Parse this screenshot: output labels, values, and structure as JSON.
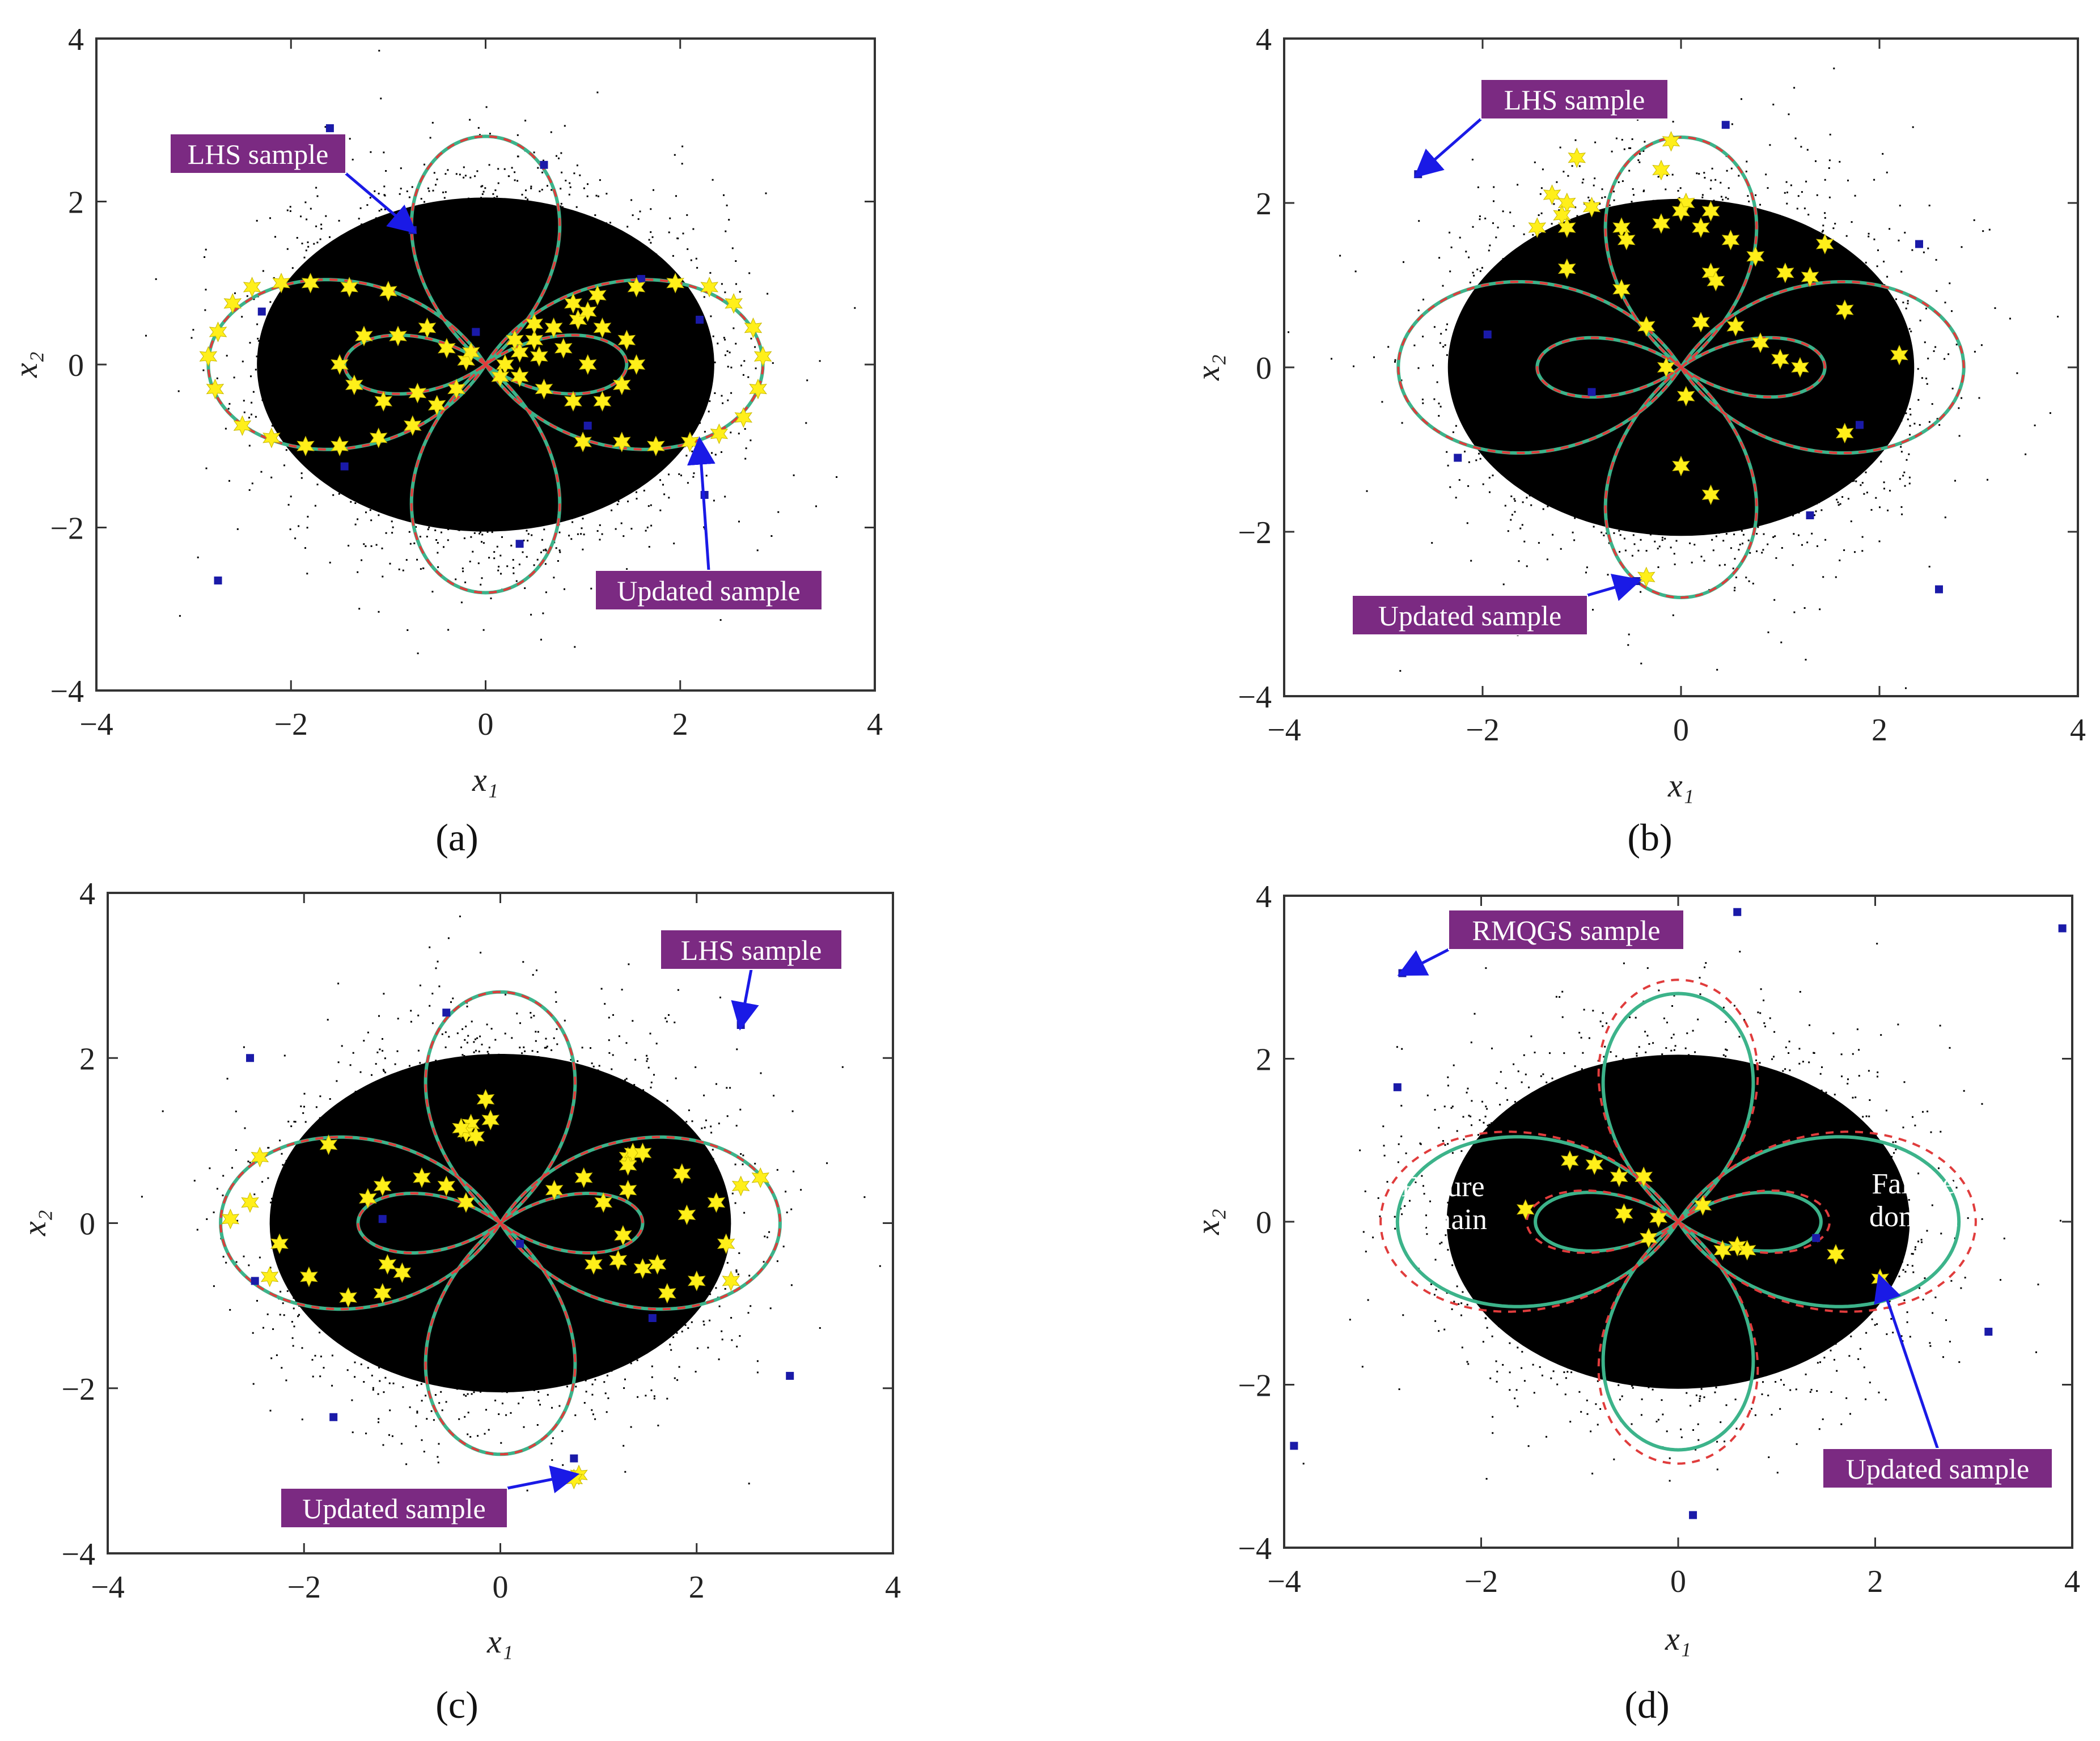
{
  "figure": {
    "panel_labels": [
      "(a)",
      "(b)",
      "(c)",
      "(d)"
    ],
    "colors": {
      "mcs_points": "#000000",
      "true_boundary": "#3cb38a",
      "surrogate_boundary": "#e03c3c",
      "initial_sample": "#1a1aa8",
      "updated_sample": "#ffef1a",
      "annotation_bg": "#7b2a82",
      "annotation_text": "#ffffff",
      "arrow": "#1a1ae6"
    }
  },
  "chart_data": [
    {
      "id": "a",
      "type": "scatter",
      "panel_label": "(a)",
      "xlabel": "x₁",
      "ylabel": "x₂",
      "xlim": [
        -4,
        4
      ],
      "ylim": [
        -4,
        4
      ],
      "xticks": [
        -4,
        -2,
        0,
        2,
        4
      ],
      "yticks": [
        -4,
        -2,
        0,
        2,
        4
      ],
      "tick_labels": [
        "−4",
        "−2",
        "0",
        "2",
        "4"
      ],
      "series": [
        {
          "name": "Monte Carlo population",
          "kind": "dense cloud",
          "std": 1.0
        },
        {
          "name": "Limit state (true)",
          "kind": "curve",
          "style": "solid"
        },
        {
          "name": "Limit state (surrogate)",
          "kind": "curve",
          "style": "dashed",
          "scale": 1.0
        },
        {
          "name": "LHS sample",
          "kind": "square",
          "points": [
            [
              -0.75,
              1.65
            ],
            [
              0.6,
              2.45
            ],
            [
              -1.6,
              2.9
            ],
            [
              -2.3,
              0.65
            ],
            [
              -0.1,
              0.4
            ],
            [
              1.6,
              1.05
            ],
            [
              -1.45,
              -1.25
            ],
            [
              1.05,
              -0.75
            ],
            [
              0.35,
              -2.2
            ],
            [
              2.25,
              -1.6
            ],
            [
              -2.75,
              -2.65
            ],
            [
              2.2,
              0.55
            ]
          ]
        },
        {
          "name": "Updated sample",
          "kind": "star",
          "points": [
            [
              -2.85,
              0.1
            ],
            [
              -2.78,
              -0.3
            ],
            [
              -2.75,
              0.4
            ],
            [
              -2.6,
              0.75
            ],
            [
              -2.4,
              0.95
            ],
            [
              -2.1,
              1.0
            ],
            [
              -1.8,
              1.0
            ],
            [
              -1.4,
              0.95
            ],
            [
              -1.0,
              0.9
            ],
            [
              -2.5,
              -0.75
            ],
            [
              -2.2,
              -0.9
            ],
            [
              -1.85,
              -1.0
            ],
            [
              -1.5,
              -1.0
            ],
            [
              -1.1,
              -0.9
            ],
            [
              -0.75,
              -0.75
            ],
            [
              -0.9,
              0.35
            ],
            [
              -1.25,
              0.35
            ],
            [
              -1.5,
              0.0
            ],
            [
              -1.35,
              -0.25
            ],
            [
              -1.05,
              -0.45
            ],
            [
              -0.7,
              -0.35
            ],
            [
              -0.6,
              0.45
            ],
            [
              -0.4,
              0.2
            ],
            [
              -0.2,
              0.05
            ],
            [
              0.2,
              0.0
            ],
            [
              0.35,
              0.15
            ],
            [
              0.5,
              0.3
            ],
            [
              0.7,
              0.45
            ],
            [
              0.95,
              0.55
            ],
            [
              1.2,
              0.45
            ],
            [
              1.45,
              0.3
            ],
            [
              1.55,
              0.0
            ],
            [
              1.4,
              -0.25
            ],
            [
              1.2,
              -0.45
            ],
            [
              0.9,
              -0.45
            ],
            [
              0.6,
              -0.3
            ],
            [
              0.35,
              -0.15
            ],
            [
              0.9,
              0.75
            ],
            [
              1.05,
              0.65
            ],
            [
              0.55,
              0.1
            ],
            [
              0.8,
              0.2
            ],
            [
              1.05,
              0.0
            ],
            [
              1.0,
              -0.95
            ],
            [
              1.4,
              -0.95
            ],
            [
              1.75,
              -1.0
            ],
            [
              2.1,
              -0.95
            ],
            [
              2.4,
              -0.85
            ],
            [
              2.65,
              -0.65
            ],
            [
              2.8,
              -0.3
            ],
            [
              2.85,
              0.1
            ],
            [
              2.75,
              0.45
            ],
            [
              2.55,
              0.75
            ],
            [
              2.3,
              0.95
            ],
            [
              1.95,
              1.0
            ],
            [
              1.55,
              0.95
            ],
            [
              1.15,
              0.85
            ],
            [
              -0.5,
              -0.5
            ],
            [
              0.5,
              0.5
            ],
            [
              -0.3,
              -0.3
            ],
            [
              0.3,
              0.3
            ],
            [
              -0.15,
              0.15
            ],
            [
              0.15,
              -0.15
            ]
          ]
        }
      ],
      "annotations": [
        {
          "text": "LHS sample",
          "target": [
            -0.75,
            1.65
          ]
        },
        {
          "text": "Updated sample",
          "target": [
            2.2,
            -0.95
          ]
        }
      ]
    },
    {
      "id": "b",
      "type": "scatter",
      "panel_label": "(b)",
      "xlabel": "x₁",
      "ylabel": "x₂",
      "xlim": [
        -4,
        4
      ],
      "ylim": [
        -4,
        4
      ],
      "xticks": [
        -4,
        -2,
        0,
        2,
        4
      ],
      "yticks": [
        -4,
        -2,
        0,
        2,
        4
      ],
      "tick_labels": [
        "−4",
        "−2",
        "0",
        "2",
        "4"
      ],
      "series": [
        {
          "name": "Monte Carlo population",
          "kind": "dense cloud",
          "std": 1.0
        },
        {
          "name": "Limit state (true)",
          "kind": "curve",
          "style": "solid"
        },
        {
          "name": "Limit state (surrogate)",
          "kind": "curve",
          "style": "dashed",
          "scale": 1.0
        },
        {
          "name": "LHS sample",
          "kind": "square",
          "points": [
            [
              -2.65,
              2.35
            ],
            [
              0.45,
              2.95
            ],
            [
              2.4,
              1.5
            ],
            [
              -1.95,
              0.4
            ],
            [
              -0.9,
              -0.3
            ],
            [
              -2.25,
              -1.1
            ],
            [
              1.3,
              -1.8
            ],
            [
              1.8,
              -0.7
            ],
            [
              2.6,
              -2.7
            ],
            [
              -0.45,
              -2.6
            ]
          ]
        },
        {
          "name": "Updated sample",
          "kind": "star",
          "points": [
            [
              -1.05,
              2.55
            ],
            [
              -1.3,
              2.1
            ],
            [
              -1.15,
              2.0
            ],
            [
              -0.9,
              1.95
            ],
            [
              -1.2,
              1.85
            ],
            [
              -1.45,
              1.7
            ],
            [
              -1.15,
              1.7
            ],
            [
              -0.6,
              1.7
            ],
            [
              -0.55,
              1.55
            ],
            [
              -0.2,
              1.75
            ],
            [
              -0.2,
              2.4
            ],
            [
              0.05,
              2.0
            ],
            [
              0.0,
              1.9
            ],
            [
              0.3,
              1.9
            ],
            [
              -0.1,
              2.75
            ],
            [
              0.2,
              1.7
            ],
            [
              0.5,
              1.55
            ],
            [
              0.75,
              1.35
            ],
            [
              1.05,
              1.15
            ],
            [
              1.45,
              1.5
            ],
            [
              1.3,
              1.1
            ],
            [
              0.3,
              1.15
            ],
            [
              0.35,
              1.05
            ],
            [
              -1.15,
              1.2
            ],
            [
              -0.6,
              0.95
            ],
            [
              -0.35,
              0.5
            ],
            [
              0.2,
              0.55
            ],
            [
              0.55,
              0.5
            ],
            [
              0.8,
              0.3
            ],
            [
              1.0,
              0.1
            ],
            [
              1.2,
              0.0
            ],
            [
              -0.15,
              0.0
            ],
            [
              0.05,
              -0.35
            ],
            [
              1.65,
              0.7
            ],
            [
              2.2,
              0.15
            ],
            [
              1.65,
              -0.8
            ],
            [
              0.0,
              -1.2
            ],
            [
              0.3,
              -1.55
            ],
            [
              -0.35,
              -2.55
            ]
          ]
        }
      ],
      "annotations": [
        {
          "text": "LHS sample",
          "target": [
            -2.65,
            2.35
          ]
        },
        {
          "text": "Updated sample",
          "target": [
            -0.45,
            -2.6
          ]
        }
      ]
    },
    {
      "id": "c",
      "type": "scatter",
      "panel_label": "(c)",
      "xlabel": "x₁",
      "ylabel": "x₂",
      "xlim": [
        -4,
        4
      ],
      "ylim": [
        -4,
        4
      ],
      "xticks": [
        -4,
        -2,
        0,
        2,
        4
      ],
      "yticks": [
        -4,
        -2,
        0,
        2,
        4
      ],
      "tick_labels": [
        "−4",
        "−2",
        "0",
        "2",
        "4"
      ],
      "series": [
        {
          "name": "Monte Carlo population",
          "kind": "dense cloud",
          "std": 1.0
        },
        {
          "name": "Limit state (true)",
          "kind": "curve",
          "style": "solid"
        },
        {
          "name": "Limit state (surrogate)",
          "kind": "curve",
          "style": "dashed",
          "scale": 1.0
        },
        {
          "name": "LHS sample",
          "kind": "square",
          "points": [
            [
              2.45,
              2.4
            ],
            [
              -2.55,
              2.0
            ],
            [
              -0.55,
              2.55
            ],
            [
              -1.2,
              0.05
            ],
            [
              0.2,
              -0.25
            ],
            [
              -2.5,
              -0.7
            ],
            [
              1.55,
              -1.15
            ],
            [
              -1.7,
              -2.35
            ],
            [
              0.75,
              -2.85
            ],
            [
              2.95,
              -1.85
            ]
          ]
        },
        {
          "name": "Updated sample",
          "kind": "star",
          "points": [
            [
              -0.15,
              1.5
            ],
            [
              -0.1,
              1.25
            ],
            [
              -0.3,
              1.2
            ],
            [
              -0.35,
              1.1
            ],
            [
              -0.25,
              1.05
            ],
            [
              -0.4,
              1.15
            ],
            [
              -2.45,
              0.8
            ],
            [
              -1.75,
              0.95
            ],
            [
              -1.35,
              0.3
            ],
            [
              -1.2,
              0.45
            ],
            [
              -2.55,
              0.25
            ],
            [
              -2.75,
              0.05
            ],
            [
              -2.25,
              -0.25
            ],
            [
              -1.95,
              -0.65
            ],
            [
              -2.35,
              -0.65
            ],
            [
              -1.55,
              -0.9
            ],
            [
              -1.2,
              -0.85
            ],
            [
              -1.0,
              -0.6
            ],
            [
              -1.15,
              -0.5
            ],
            [
              -0.8,
              0.55
            ],
            [
              -0.55,
              0.45
            ],
            [
              -0.35,
              0.25
            ],
            [
              0.55,
              0.4
            ],
            [
              0.85,
              0.55
            ],
            [
              1.3,
              0.8
            ],
            [
              1.35,
              0.85
            ],
            [
              1.45,
              0.85
            ],
            [
              1.3,
              0.7
            ],
            [
              1.3,
              0.4
            ],
            [
              1.05,
              0.25
            ],
            [
              1.25,
              -0.15
            ],
            [
              1.2,
              -0.45
            ],
            [
              0.95,
              -0.5
            ],
            [
              1.45,
              -0.55
            ],
            [
              1.85,
              0.6
            ],
            [
              2.2,
              0.25
            ],
            [
              2.45,
              0.45
            ],
            [
              2.65,
              0.55
            ],
            [
              1.9,
              0.1
            ],
            [
              2.3,
              -0.25
            ],
            [
              1.6,
              -0.5
            ],
            [
              2.0,
              -0.7
            ],
            [
              2.35,
              -0.7
            ],
            [
              1.7,
              -0.85
            ],
            [
              0.8,
              -3.05
            ],
            [
              0.75,
              -3.1
            ]
          ]
        }
      ],
      "annotations": [
        {
          "text": "LHS sample",
          "target": [
            2.45,
            2.4
          ]
        },
        {
          "text": "Updated sample",
          "target": [
            0.75,
            -3.05
          ]
        }
      ]
    },
    {
      "id": "d",
      "type": "scatter",
      "panel_label": "(d)",
      "xlabel": "x₁",
      "ylabel": "x₂",
      "xlim": [
        -4,
        4
      ],
      "ylim": [
        -4,
        4
      ],
      "xticks": [
        -4,
        -2,
        0,
        2,
        4
      ],
      "yticks": [
        -4,
        -2,
        0,
        2,
        4
      ],
      "tick_labels": [
        "−4",
        "−2",
        "0",
        "2",
        "4"
      ],
      "series": [
        {
          "name": "Monte Carlo population",
          "kind": "dense cloud",
          "std": 1.0
        },
        {
          "name": "Limit state (true)",
          "kind": "curve",
          "style": "solid"
        },
        {
          "name": "Limit state (surrogate)",
          "kind": "curve",
          "style": "dashed",
          "scale": 1.06
        },
        {
          "name": "RMQGS sample",
          "kind": "square",
          "points": [
            [
              -2.8,
              3.05
            ],
            [
              0.6,
              3.8
            ],
            [
              3.9,
              3.6
            ],
            [
              -2.85,
              1.65
            ],
            [
              3.15,
              -1.35
            ],
            [
              -3.9,
              -2.75
            ],
            [
              0.15,
              -3.6
            ],
            [
              1.4,
              -0.2
            ]
          ]
        },
        {
          "name": "Updated sample",
          "kind": "star",
          "points": [
            [
              -1.55,
              0.15
            ],
            [
              -1.1,
              0.75
            ],
            [
              -0.6,
              0.55
            ],
            [
              -0.35,
              0.55
            ],
            [
              -0.55,
              0.1
            ],
            [
              -0.2,
              0.05
            ],
            [
              -0.3,
              -0.2
            ],
            [
              0.25,
              0.2
            ],
            [
              0.45,
              -0.35
            ],
            [
              0.6,
              -0.3
            ],
            [
              0.7,
              -0.35
            ],
            [
              1.6,
              -0.4
            ],
            [
              2.05,
              -0.7
            ],
            [
              -0.85,
              0.7
            ]
          ]
        }
      ],
      "annotations": [
        {
          "text": "RMQGS sample",
          "target": [
            -2.8,
            3.05
          ]
        },
        {
          "text": "Updated sample",
          "target": [
            2.05,
            -0.7
          ]
        },
        {
          "text": "Failure\ndomain",
          "kind": "label",
          "anchor": [
            -2.05,
            0.15
          ]
        },
        {
          "text": "Failure\ndomain",
          "kind": "label",
          "anchor": [
            2.05,
            0.2
          ]
        }
      ]
    }
  ]
}
